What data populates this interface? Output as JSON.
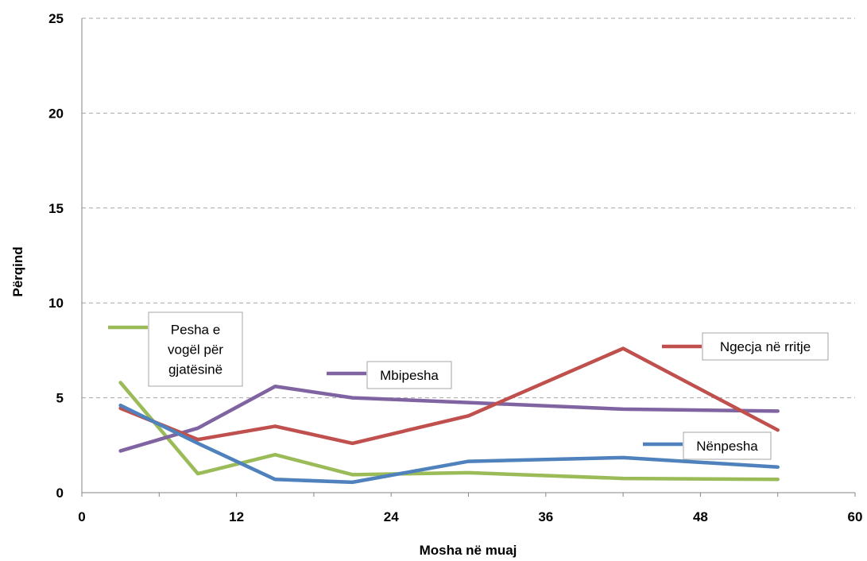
{
  "chart_data": {
    "type": "line",
    "xlabel": "Mosha në muaj",
    "ylabel": "Përqind",
    "xlim": [
      0,
      60
    ],
    "ylim": [
      0,
      25
    ],
    "x_ticks": [
      "0",
      "12",
      "24",
      "36",
      "48",
      "60"
    ],
    "y_ticks": [
      "0",
      "5",
      "10",
      "15",
      "20",
      "25"
    ],
    "grid": "horizontal dashed",
    "series": [
      {
        "name": "Pesha e vogël për gjatësinë",
        "label_lines": [
          "Pesha e",
          "vogël për",
          "gjatësinë"
        ],
        "color": "#9BBB59",
        "x": [
          3,
          9,
          15,
          21,
          30,
          42,
          54
        ],
        "y": [
          5.8,
          1.0,
          2.0,
          0.95,
          1.05,
          0.75,
          0.7
        ]
      },
      {
        "name": "Mbipesha",
        "label_lines": [
          "Mbipesha"
        ],
        "color": "#8064A2",
        "x": [
          3,
          9,
          15,
          21,
          30,
          42,
          54
        ],
        "y": [
          2.2,
          3.4,
          5.6,
          5.0,
          4.75,
          4.4,
          4.3
        ]
      },
      {
        "name": "Ngecja në rritje",
        "label_lines": [
          "Ngecja në rritje"
        ],
        "color": "#C0504D",
        "x": [
          3,
          9,
          15,
          21,
          30,
          42,
          54
        ],
        "y": [
          4.45,
          2.8,
          3.5,
          2.6,
          4.05,
          7.6,
          3.3
        ]
      },
      {
        "name": "Nënpesha",
        "label_lines": [
          "Nënpesha"
        ],
        "color": "#4F81BD",
        "x": [
          3,
          9,
          15,
          21,
          30,
          42,
          54
        ],
        "y": [
          4.6,
          2.6,
          0.7,
          0.55,
          1.65,
          1.85,
          1.35
        ]
      }
    ]
  }
}
